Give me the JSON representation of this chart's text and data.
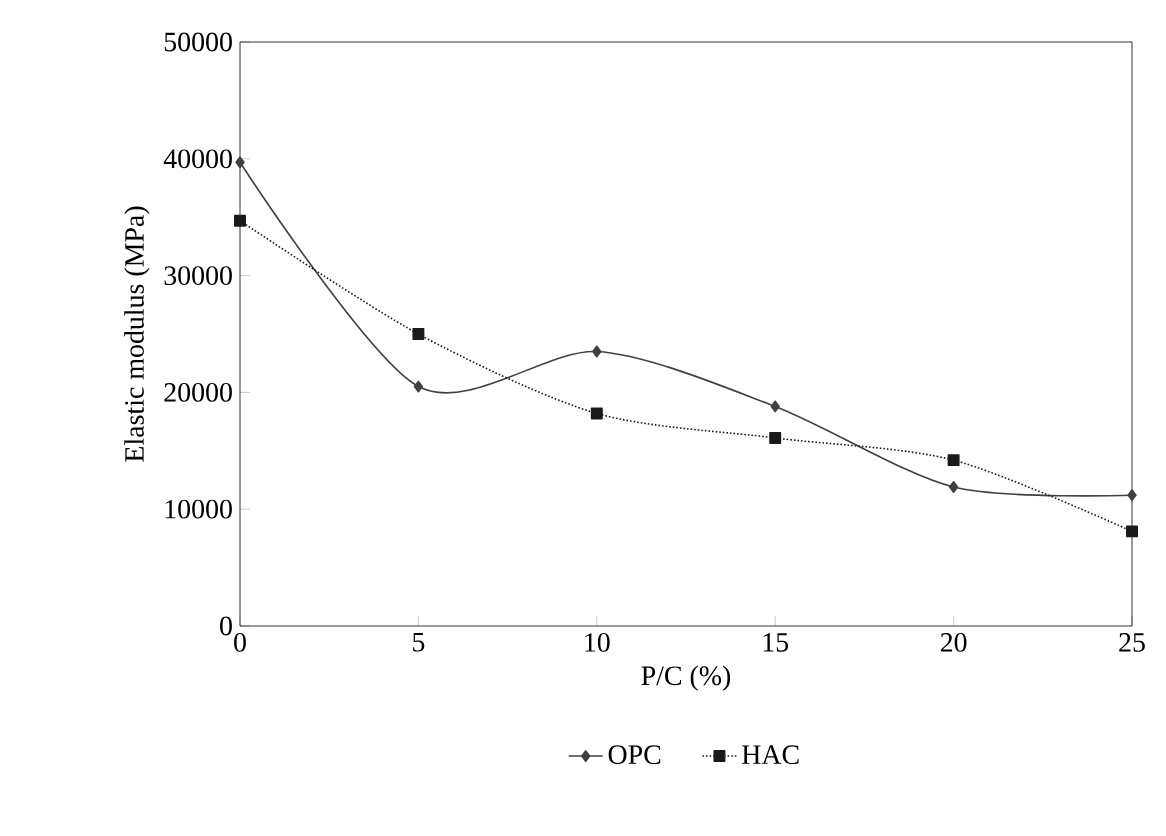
{
  "chart_data": {
    "type": "line",
    "xlabel": "P/C (%)",
    "ylabel": "Elastic modulus  (MPa)",
    "x": [
      0,
      5,
      10,
      15,
      20,
      25
    ],
    "series": [
      {
        "name": "OPC",
        "color": "#404040",
        "marker": "diamond",
        "line_style": "solid",
        "values": [
          39700,
          20500,
          23500,
          18800,
          11900,
          11200
        ]
      },
      {
        "name": "HAC",
        "color": "#1a1a1a",
        "marker": "square",
        "line_style": "dotted",
        "values": [
          34700,
          25000,
          18200,
          16100,
          14200,
          8100
        ]
      }
    ],
    "xlim": [
      0,
      25
    ],
    "xticks": [
      0,
      5,
      10,
      15,
      20,
      25
    ],
    "ylim": [
      0,
      50000
    ],
    "yticks": [
      0,
      10000,
      20000,
      30000,
      40000,
      50000
    ],
    "grid": false,
    "legend": "bottom"
  }
}
